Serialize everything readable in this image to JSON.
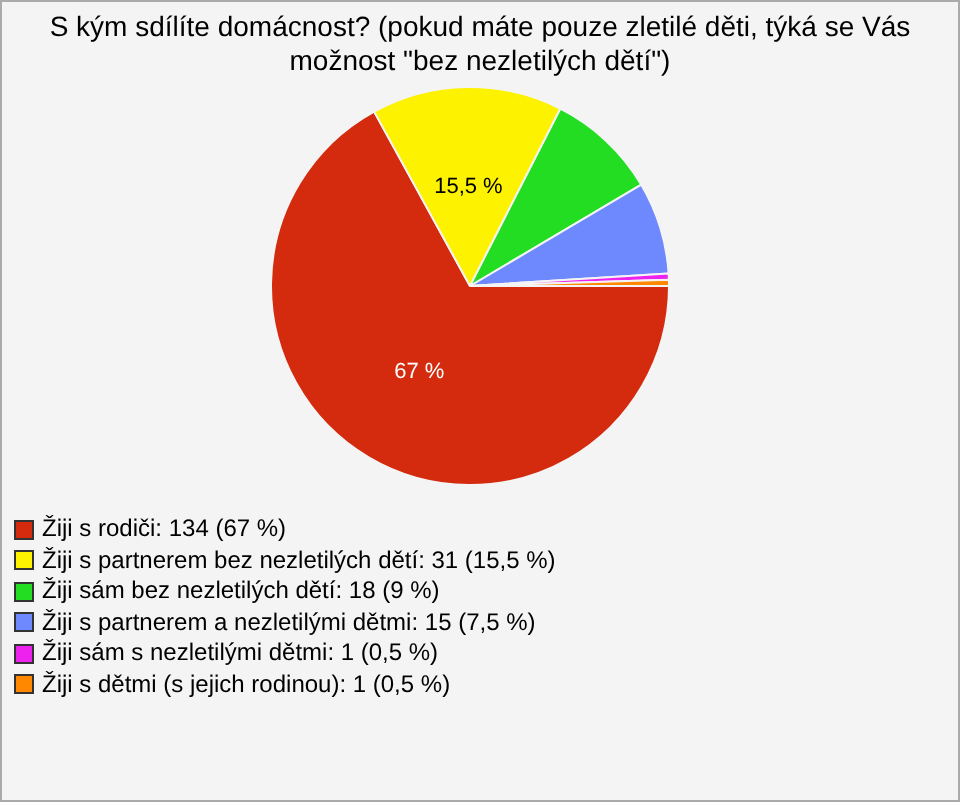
{
  "chart_data": {
    "type": "pie",
    "title": "S kým sdílíte domácnost? (pokud máte pouze zletilé děti, týká se Vás možnost \"bez nezletilých dětí\")",
    "categories": [
      "Žiji s rodiči: 134 (67 %)",
      "Žiji s partnerem bez nezletilých dětí: 31 (15,5 %)",
      "Žiji sám bez nezletilých dětí: 18 (9 %)",
      "Žiji s partnerem a nezletilými dětmi: 15 (7,5 %)",
      "Žiji sám s nezletilými dětmi: 1 (0,5 %)",
      "Žiji s dětmi (s jejich rodinou): 1 (0,5 %)"
    ],
    "values": [
      67,
      15.5,
      9,
      7.5,
      0.5,
      0.5
    ],
    "colors": [
      "#d42a0e",
      "#fdf200",
      "#22dd22",
      "#6e88fe",
      "#ee22ee",
      "#ff8800"
    ],
    "value_labels": [
      "67 %",
      "15,5 %",
      null,
      null,
      null,
      null
    ],
    "legend": "bottom"
  }
}
